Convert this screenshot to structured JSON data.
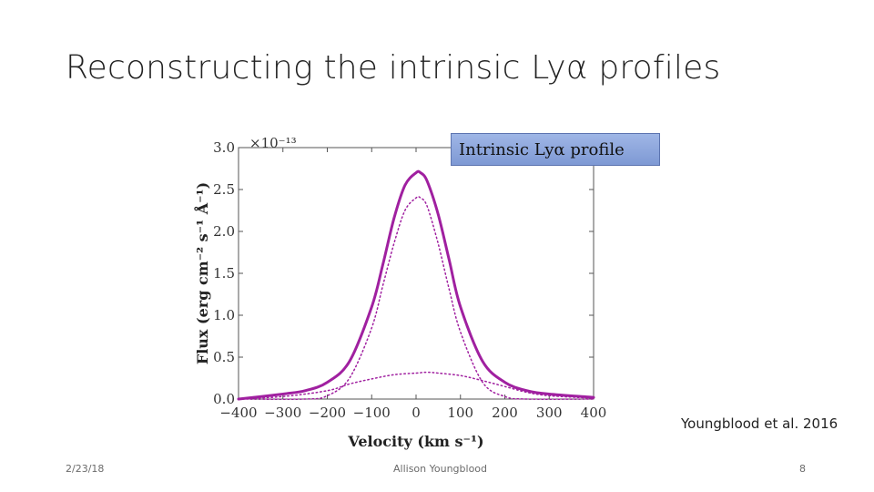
{
  "slide": {
    "title": "Reconstructing the intrinsic Lyα profiles",
    "callout": "Intrinsic Lyα profile",
    "citation": "Youngblood et al. 2016",
    "footer": {
      "date": "2/23/18",
      "author": "Allison Youngblood",
      "page": "8"
    }
  },
  "chart_data": {
    "type": "line",
    "xlabel": "Velocity (km s⁻¹)",
    "ylabel": "Flux (erg cm⁻² s⁻¹ Å⁻¹)",
    "y_multiplier": "×10⁻¹³",
    "xlim": [
      -400,
      400
    ],
    "ylim": [
      0,
      3.0
    ],
    "xticks": [
      "−400",
      "−300",
      "−200",
      "−100",
      "0",
      "100",
      "200",
      "300",
      "400"
    ],
    "yticks": [
      "0.0",
      "0.5",
      "1.0",
      "1.5",
      "2.0",
      "2.5",
      "3.0"
    ],
    "grid": false,
    "colors": {
      "total": "#a020a0",
      "components": "#a020a0"
    },
    "series": [
      {
        "style": "solid",
        "x": [
          -400,
          -300,
          -250,
          -200,
          -150,
          -100,
          -75,
          -50,
          -25,
          0,
          10,
          25,
          50,
          75,
          100,
          150,
          200,
          250,
          300,
          400
        ],
        "y": [
          0.0,
          0.06,
          0.1,
          0.2,
          0.45,
          1.1,
          1.6,
          2.15,
          2.55,
          2.7,
          2.7,
          2.6,
          2.2,
          1.65,
          1.1,
          0.45,
          0.2,
          0.1,
          0.06,
          0.02
        ]
      },
      {
        "style": "dotted",
        "x": [
          -400,
          -250,
          -200,
          -150,
          -100,
          -75,
          -50,
          -25,
          0,
          10,
          25,
          50,
          75,
          100,
          150,
          200,
          250,
          400
        ],
        "y": [
          0.0,
          0.0,
          0.04,
          0.25,
          0.85,
          1.35,
          1.85,
          2.25,
          2.4,
          2.4,
          2.3,
          1.85,
          1.3,
          0.8,
          0.2,
          0.03,
          0.0,
          0.0
        ]
      },
      {
        "style": "dotted",
        "x": [
          -400,
          -300,
          -200,
          -150,
          -100,
          -50,
          0,
          25,
          50,
          100,
          150,
          200,
          250,
          300,
          400
        ],
        "y": [
          0.0,
          0.03,
          0.1,
          0.18,
          0.24,
          0.29,
          0.31,
          0.32,
          0.31,
          0.28,
          0.22,
          0.15,
          0.08,
          0.04,
          0.01
        ]
      }
    ]
  }
}
